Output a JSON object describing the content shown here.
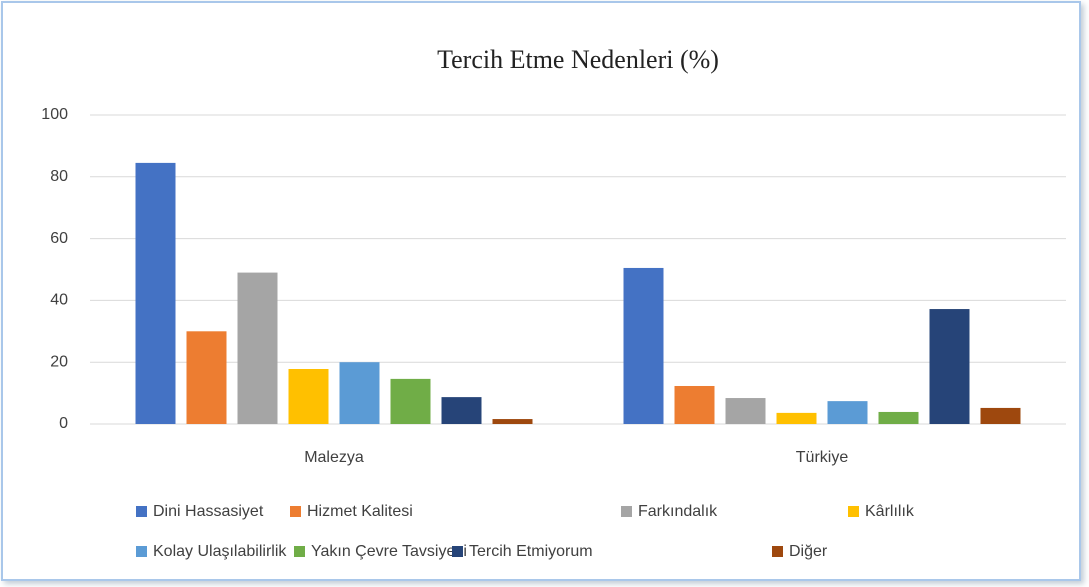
{
  "chart_data": {
    "type": "bar",
    "title": "Tercih Etme Nedenleri (%)",
    "categories": [
      "Malezya",
      "Türkiye"
    ],
    "ylim": [
      0,
      100
    ],
    "yticks": [
      0,
      20,
      40,
      60,
      80,
      100
    ],
    "grid": true,
    "legend": "bottom",
    "series": [
      {
        "name": "Dini Hassasiyet",
        "color": "#4472c4",
        "values": [
          84.5,
          50.5
        ]
      },
      {
        "name": "Hizmet Kalitesi",
        "color": "#ed7d31",
        "values": [
          30,
          12.3
        ]
      },
      {
        "name": "Farkındalık",
        "color": "#a5a5a5",
        "values": [
          49,
          8.4
        ]
      },
      {
        "name": "Kârlılık",
        "color": "#ffc000",
        "values": [
          17.8,
          3.6
        ]
      },
      {
        "name": "Kolay Ulaşılabilirlik",
        "color": "#5b9bd5",
        "values": [
          20,
          7.4
        ]
      },
      {
        "name": "Yakın Çevre Tavsiyesi",
        "color": "#70ad47",
        "values": [
          14.6,
          3.9
        ]
      },
      {
        "name": "Tercih Etmiyorum",
        "color": "#264478",
        "values": [
          8.7,
          37.2
        ]
      },
      {
        "name": "Diğer",
        "color": "#9e480e",
        "values": [
          1.6,
          5.2
        ]
      }
    ]
  }
}
